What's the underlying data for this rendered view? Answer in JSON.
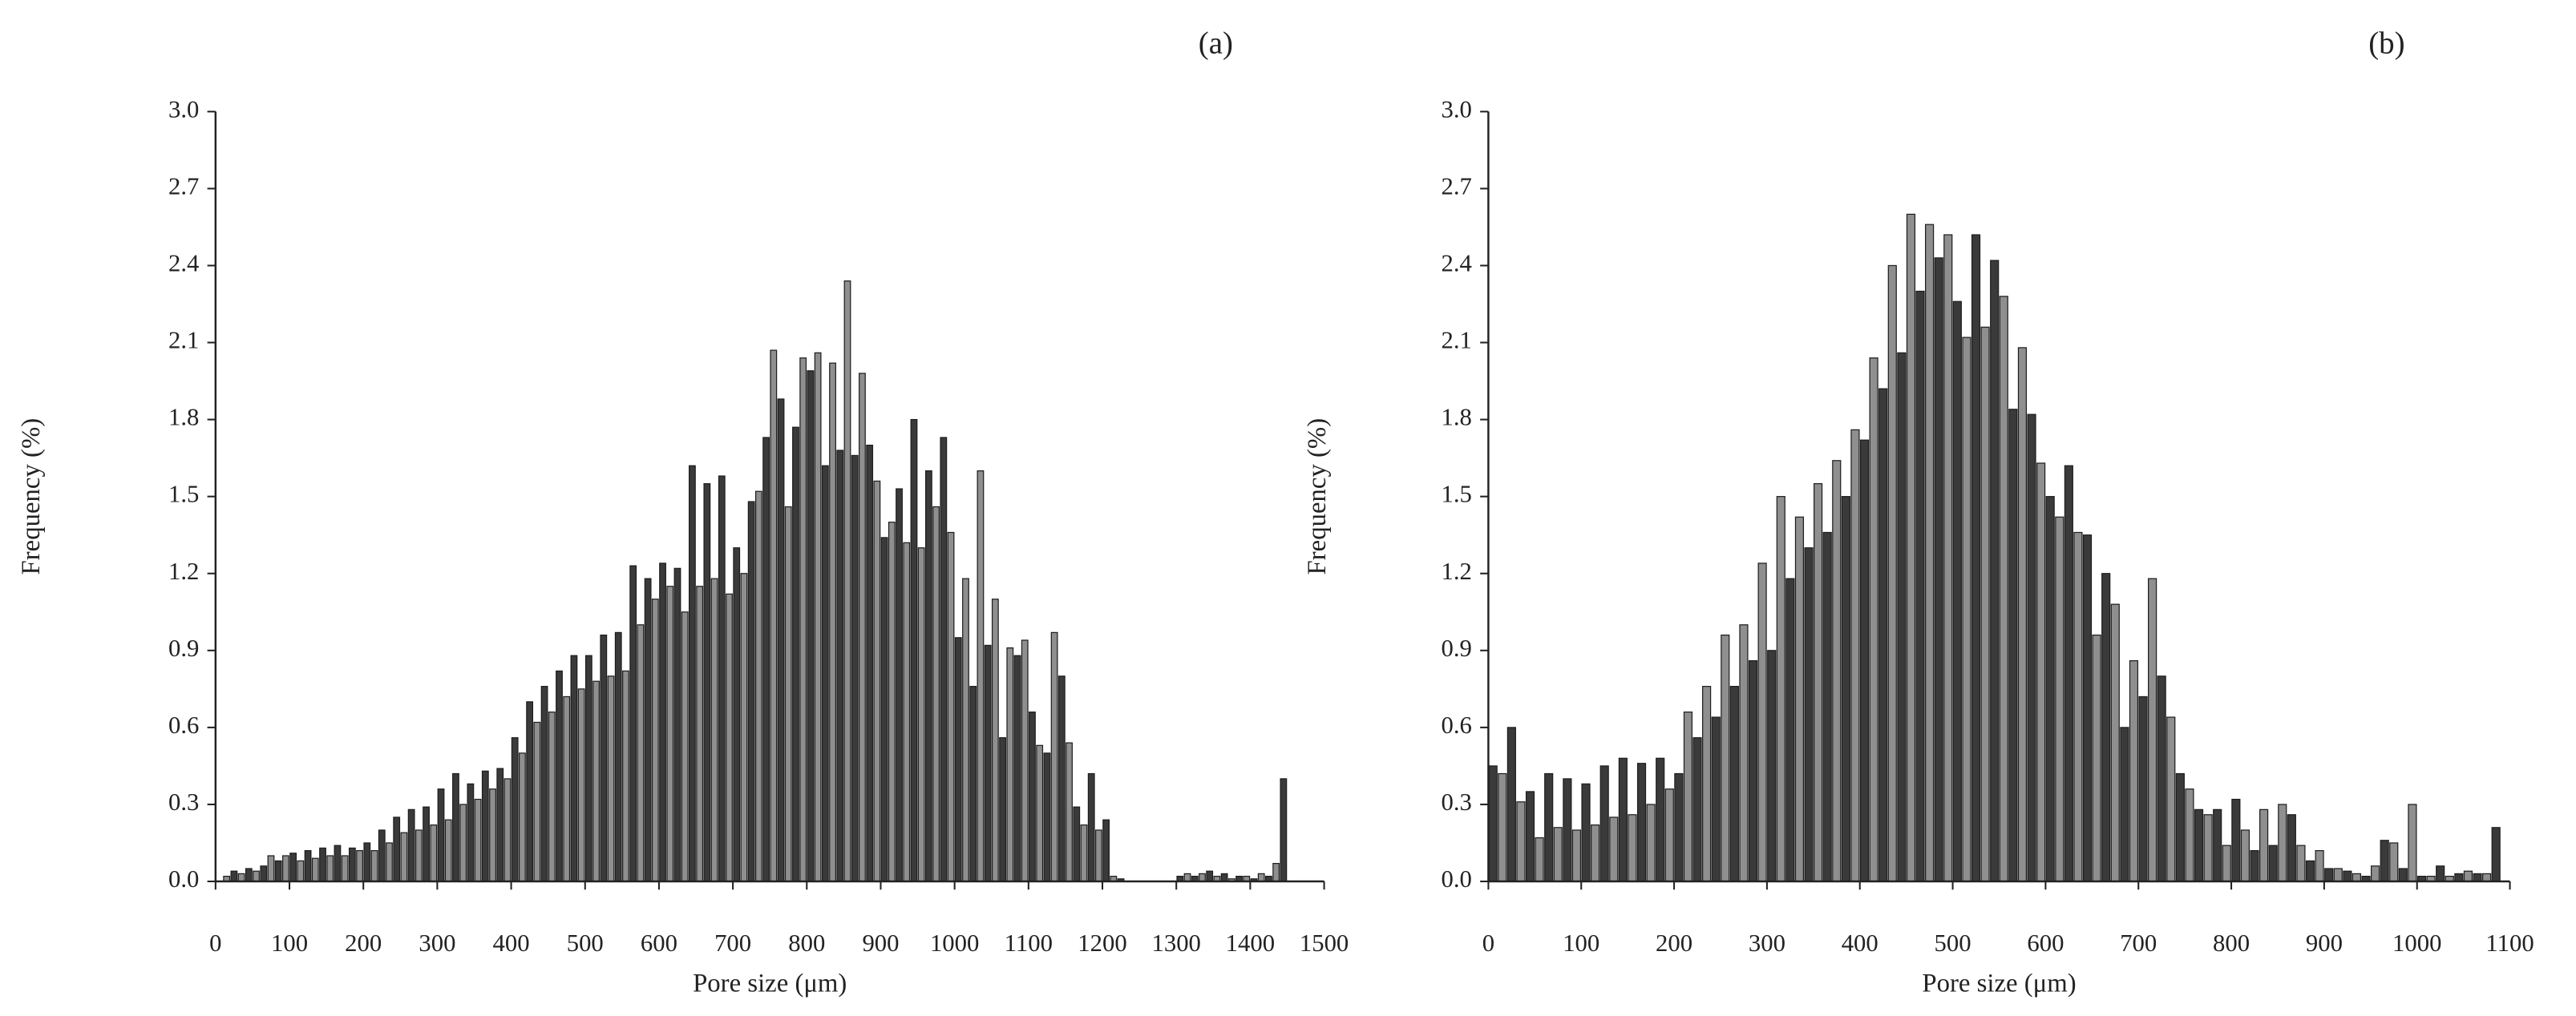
{
  "chart_data": [
    {
      "type": "histogram",
      "title": "(a)",
      "x_label": "Pore size (μm)",
      "y_label": "Frequency (%)",
      "colors": [
        "#3a3a3a",
        "#8f8f8f"
      ],
      "bins": [
        0,
        10,
        20,
        30,
        40,
        50,
        60,
        70,
        80,
        90,
        100,
        110,
        120,
        130,
        140,
        150,
        160,
        170,
        180,
        190,
        200,
        210,
        220,
        230,
        240,
        250,
        260,
        270,
        280,
        290,
        300,
        310,
        320,
        330,
        340,
        350,
        360,
        370,
        380,
        390,
        400,
        410,
        420,
        430,
        440,
        450,
        460,
        470,
        480,
        490,
        500,
        510,
        520,
        530,
        540,
        550,
        560,
        570,
        580,
        590,
        600,
        610,
        620,
        630,
        640,
        650,
        660,
        670,
        680,
        690,
        700,
        710,
        720,
        730,
        740,
        750,
        760,
        770,
        780,
        790,
        800,
        810,
        820,
        830,
        840,
        850,
        860,
        870,
        880,
        890,
        900,
        910,
        920,
        930,
        940,
        950,
        960,
        970,
        980,
        990,
        1000,
        1010,
        1020,
        1030,
        1040,
        1050,
        1060,
        1070,
        1080,
        1090,
        1100,
        1110,
        1120,
        1130,
        1140,
        1150,
        1160,
        1170,
        1180,
        1190,
        1200,
        1210,
        1220,
        1230,
        1240,
        1250,
        1260,
        1270,
        1280,
        1290,
        1300,
        1310,
        1320,
        1330,
        1340,
        1350,
        1360,
        1370,
        1380,
        1390,
        1400,
        1410,
        1420,
        1430,
        1440,
        1450,
        1460,
        1470,
        1480,
        1490,
        1500
      ],
      "values": [
        0,
        0.02,
        0.04,
        0.03,
        0.05,
        0.04,
        0.06,
        0.1,
        0.08,
        0.1,
        0.11,
        0.08,
        0.12,
        0.09,
        0.13,
        0.1,
        0.14,
        0.1,
        0.13,
        0.12,
        0.15,
        0.12,
        0.2,
        0.15,
        0.25,
        0.19,
        0.28,
        0.2,
        0.29,
        0.22,
        0.36,
        0.24,
        0.42,
        0.3,
        0.38,
        0.32,
        0.43,
        0.36,
        0.44,
        0.4,
        0.56,
        0.5,
        0.7,
        0.62,
        0.76,
        0.66,
        0.82,
        0.72,
        0.88,
        0.75,
        0.88,
        0.78,
        0.96,
        0.8,
        0.97,
        0.82,
        1.23,
        1.0,
        1.18,
        1.1,
        1.24,
        1.15,
        1.22,
        1.05,
        1.62,
        1.15,
        1.55,
        1.18,
        1.58,
        1.12,
        1.3,
        1.2,
        1.48,
        1.52,
        1.73,
        2.07,
        1.88,
        1.46,
        1.77,
        2.04,
        1.99,
        2.06,
        1.62,
        2.02,
        1.68,
        2.34,
        1.66,
        1.98,
        1.7,
        1.56,
        1.34,
        1.4,
        1.53,
        1.32,
        1.8,
        1.3,
        1.6,
        1.46,
        1.73,
        1.36,
        0.95,
        1.18,
        0.76,
        1.6,
        0.92,
        1.1,
        0.56,
        0.91,
        0.88,
        0.94,
        0.66,
        0.53,
        0.5,
        0.97,
        0.8,
        0.54,
        0.29,
        0.22,
        0.42,
        0.2,
        0.24,
        0.02,
        0.01,
        0,
        0,
        0,
        0,
        0,
        0,
        0,
        0.02,
        0.03,
        0.02,
        0.03,
        0.04,
        0.02,
        0.03,
        0.01,
        0.02,
        0.02,
        0.01,
        0.03,
        0.02,
        0.07,
        0.4,
        0,
        0,
        0,
        0,
        0
      ],
      "xlim": [
        0,
        1500
      ],
      "xticks": [
        0,
        100,
        200,
        300,
        400,
        500,
        600,
        700,
        800,
        900,
        1000,
        1100,
        1200,
        1300,
        1400,
        1500
      ],
      "ylim": [
        0,
        3
      ],
      "yticks": [
        {
          "value": 0,
          "label": "0.0"
        },
        0.3,
        0.6,
        0.9,
        1.2,
        1.5,
        1.8,
        2.1,
        2.4,
        2.7,
        {
          "value": 3,
          "label": "3.0"
        }
      ]
    },
    {
      "type": "histogram",
      "title": "(b)",
      "x_label": "Pore size (μm)",
      "y_label": "Frequency (%)",
      "colors": [
        "#3a3a3a",
        "#8f8f8f"
      ],
      "bins": [
        0,
        10,
        20,
        30,
        40,
        50,
        60,
        70,
        80,
        90,
        100,
        110,
        120,
        130,
        140,
        150,
        160,
        170,
        180,
        190,
        200,
        210,
        220,
        230,
        240,
        250,
        260,
        270,
        280,
        290,
        300,
        310,
        320,
        330,
        340,
        350,
        360,
        370,
        380,
        390,
        400,
        410,
        420,
        430,
        440,
        450,
        460,
        470,
        480,
        490,
        500,
        510,
        520,
        530,
        540,
        550,
        560,
        570,
        580,
        590,
        600,
        610,
        620,
        630,
        640,
        650,
        660,
        670,
        680,
        690,
        700,
        710,
        720,
        730,
        740,
        750,
        760,
        770,
        780,
        790,
        800,
        810,
        820,
        830,
        840,
        850,
        860,
        870,
        880,
        890,
        900,
        910,
        920,
        930,
        940,
        950,
        960,
        970,
        980,
        990,
        1000,
        1010,
        1020,
        1030,
        1040,
        1050,
        1060,
        1070,
        1080,
        1090,
        1100
      ],
      "values": [
        0.45,
        0.42,
        0.6,
        0.31,
        0.35,
        0.17,
        0.42,
        0.21,
        0.4,
        0.2,
        0.38,
        0.22,
        0.45,
        0.25,
        0.48,
        0.26,
        0.46,
        0.3,
        0.48,
        0.36,
        0.42,
        0.66,
        0.56,
        0.76,
        0.64,
        0.96,
        0.76,
        1.0,
        0.86,
        1.24,
        0.9,
        1.5,
        1.18,
        1.42,
        1.3,
        1.55,
        1.36,
        1.64,
        1.5,
        1.76,
        1.72,
        2.04,
        1.92,
        2.4,
        2.06,
        2.6,
        2.3,
        2.56,
        2.43,
        2.52,
        2.26,
        2.12,
        2.52,
        2.16,
        2.42,
        2.28,
        1.84,
        2.08,
        1.82,
        1.63,
        1.5,
        1.42,
        1.62,
        1.36,
        1.35,
        0.96,
        1.2,
        1.08,
        0.6,
        0.86,
        0.72,
        1.18,
        0.8,
        0.64,
        0.42,
        0.36,
        0.28,
        0.26,
        0.28,
        0.14,
        0.32,
        0.2,
        0.12,
        0.28,
        0.14,
        0.3,
        0.26,
        0.14,
        0.08,
        0.12,
        0.05,
        0.05,
        0.04,
        0.03,
        0.02,
        0.06,
        0.16,
        0.15,
        0.05,
        0.3,
        0.02,
        0.02,
        0.06,
        0.02,
        0.03,
        0.04,
        0.03,
        0.03,
        0.21,
        0
      ],
      "xlim": [
        0,
        1100
      ],
      "xticks": [
        0,
        100,
        200,
        300,
        400,
        500,
        600,
        700,
        800,
        900,
        1000,
        1100
      ],
      "ylim": [
        0,
        3
      ],
      "yticks": [
        {
          "value": 0,
          "label": "0.0"
        },
        0.3,
        0.6,
        0.9,
        1.2,
        1.5,
        1.8,
        2.1,
        2.4,
        2.7,
        {
          "value": 3,
          "label": "3.0"
        }
      ]
    }
  ]
}
